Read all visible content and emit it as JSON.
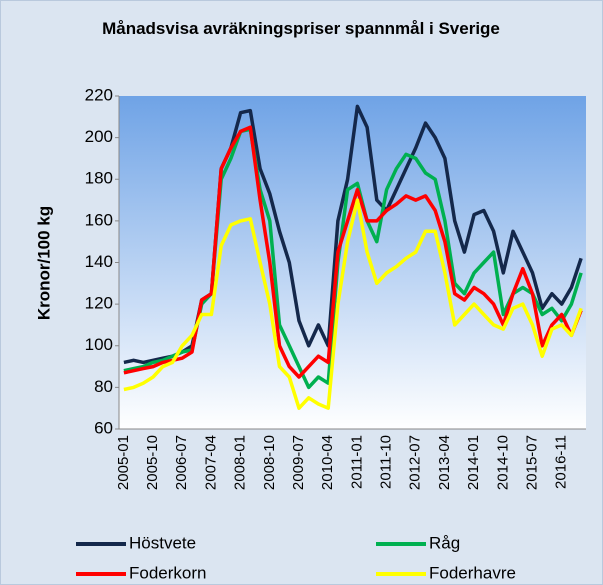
{
  "chart_data": {
    "type": "line",
    "title": "Månadsvisa avräkningspriser spannmål i Sverige",
    "y_label": "Kronor/100 kg",
    "categories": [
      "2005-01",
      null,
      null,
      "2005-10",
      null,
      null,
      "2006-07",
      null,
      null,
      "2007-04",
      null,
      null,
      "2008-01",
      null,
      null,
      "2008-10",
      null,
      null,
      "2009-07",
      null,
      null,
      "2010-04",
      null,
      null,
      "2011-01",
      null,
      null,
      "2011-10",
      null,
      null,
      "2012-07",
      null,
      null,
      "2013-04",
      null,
      null,
      "2014-01",
      null,
      null,
      "2014-10",
      null,
      null,
      "2015-07",
      null,
      null,
      "2016-11",
      null,
      null
    ],
    "series": [
      {
        "name": "Höstvete",
        "color": "#14284b",
        "values": [
          92,
          93,
          92,
          93,
          94,
          95,
          97,
          100,
          122,
          125,
          185,
          195,
          212,
          213,
          185,
          173,
          155,
          140,
          112,
          100,
          110,
          100,
          160,
          180,
          215,
          205,
          170,
          165,
          175,
          185,
          195,
          207,
          200,
          190,
          160,
          145,
          163,
          165,
          155,
          135,
          155,
          145,
          135,
          118,
          125,
          120,
          128,
          142
        ]
      },
      {
        "name": "Råg",
        "color": "#00b050",
        "values": [
          88,
          89,
          90,
          92,
          93,
          95,
          97,
          98,
          120,
          125,
          180,
          190,
          203,
          204,
          175,
          160,
          110,
          100,
          90,
          80,
          85,
          82,
          140,
          175,
          178,
          160,
          150,
          175,
          185,
          192,
          190,
          183,
          180,
          160,
          130,
          125,
          135,
          140,
          145,
          115,
          125,
          128,
          125,
          115,
          118,
          112,
          120,
          135
        ]
      },
      {
        "name": "Foderkorn",
        "color": "#ff0000",
        "values": [
          87,
          88,
          89,
          90,
          92,
          93,
          94,
          97,
          122,
          125,
          185,
          195,
          203,
          205,
          170,
          140,
          100,
          90,
          85,
          90,
          95,
          92,
          145,
          160,
          175,
          160,
          160,
          165,
          168,
          172,
          170,
          172,
          165,
          150,
          125,
          122,
          128,
          125,
          120,
          110,
          125,
          137,
          125,
          100,
          110,
          115,
          105,
          117
        ]
      },
      {
        "name": "Foderhavre",
        "color": "#ffff00",
        "values": [
          79,
          80,
          82,
          85,
          90,
          92,
          100,
          105,
          115,
          115,
          148,
          158,
          160,
          161,
          140,
          120,
          90,
          85,
          70,
          75,
          72,
          70,
          120,
          150,
          170,
          145,
          130,
          135,
          138,
          142,
          145,
          155,
          155,
          135,
          110,
          115,
          120,
          115,
          110,
          108,
          118,
          120,
          110,
          95,
          108,
          110,
          105,
          118
        ]
      }
    ],
    "ylim": [
      60,
      220
    ],
    "yticks": [
      60,
      80,
      100,
      120,
      140,
      160,
      180,
      200,
      220
    ]
  }
}
